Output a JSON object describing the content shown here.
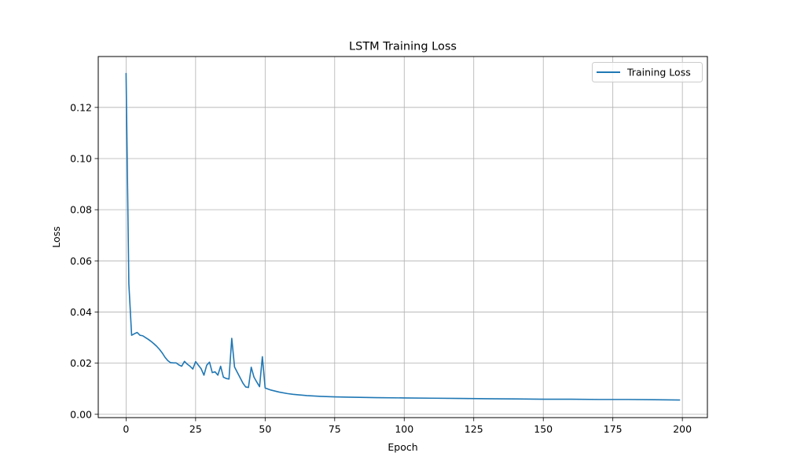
{
  "chart_data": {
    "type": "line",
    "title": "LSTM Training Loss",
    "xlabel": "Epoch",
    "ylabel": "Loss",
    "xlim": [
      -10,
      209
    ],
    "ylim": [
      -0.0013,
      0.1399
    ],
    "xticks": [
      0,
      25,
      50,
      75,
      100,
      125,
      150,
      175,
      200
    ],
    "xtick_labels": [
      "0",
      "25",
      "50",
      "75",
      "100",
      "125",
      "150",
      "175",
      "200"
    ],
    "yticks": [
      0.0,
      0.02,
      0.04,
      0.06,
      0.08,
      0.1,
      0.12
    ],
    "ytick_labels": [
      "0.00",
      "0.02",
      "0.04",
      "0.06",
      "0.08",
      "0.10",
      "0.12"
    ],
    "grid": true,
    "legend": "top-right",
    "series": [
      {
        "name": "Training Loss",
        "color": "#1f77b4",
        "x": [
          0,
          1,
          2,
          3,
          4,
          5,
          6,
          7,
          8,
          9,
          10,
          11,
          12,
          13,
          14,
          15,
          16,
          17,
          18,
          19,
          20,
          21,
          22,
          23,
          24,
          25,
          26,
          27,
          28,
          29,
          30,
          31,
          32,
          33,
          34,
          35,
          36,
          37,
          38,
          39,
          40,
          41,
          42,
          43,
          44,
          45,
          46,
          47,
          48,
          49,
          50,
          52,
          55,
          58,
          60,
          65,
          70,
          75,
          80,
          90,
          100,
          110,
          120,
          130,
          140,
          150,
          160,
          170,
          180,
          190,
          199
        ],
        "y": [
          0.1333,
          0.051,
          0.0309,
          0.0315,
          0.032,
          0.0309,
          0.0307,
          0.03,
          0.0293,
          0.0285,
          0.0276,
          0.0266,
          0.0254,
          0.024,
          0.0223,
          0.021,
          0.0202,
          0.0201,
          0.0201,
          0.0193,
          0.0188,
          0.0207,
          0.0196,
          0.0188,
          0.0177,
          0.0206,
          0.0192,
          0.0178,
          0.0153,
          0.0192,
          0.0204,
          0.0163,
          0.0166,
          0.0153,
          0.0188,
          0.0145,
          0.014,
          0.0138,
          0.0297,
          0.0185,
          0.0164,
          0.0143,
          0.0122,
          0.0107,
          0.0105,
          0.0184,
          0.0145,
          0.0126,
          0.0108,
          0.0225,
          0.0103,
          0.0095,
          0.0087,
          0.0081,
          0.0078,
          0.0073,
          0.007,
          0.0068,
          0.0067,
          0.0065,
          0.0064,
          0.0063,
          0.0062,
          0.0061,
          0.006,
          0.0059,
          0.0059,
          0.0058,
          0.0058,
          0.0057,
          0.0056
        ]
      }
    ]
  }
}
